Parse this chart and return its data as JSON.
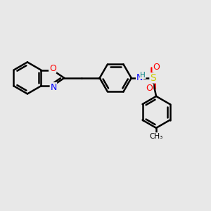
{
  "bg_color": "#e8e8e8",
  "bond_color": "#000000",
  "bond_width": 1.8,
  "atom_colors": {
    "O": "#ff0000",
    "N": "#0000ff",
    "S": "#cccc00",
    "H": "#008080",
    "C": "#000000"
  },
  "font_size_atom": 9,
  "font_size_small": 7.5
}
